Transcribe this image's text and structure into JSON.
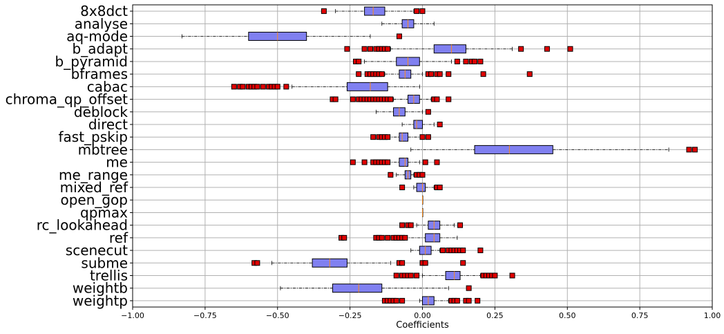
{
  "chart_data": {
    "type": "boxplot",
    "orientation": "horizontal",
    "xlabel": "Coefficients",
    "ylabel": "",
    "xlim": [
      -1.0,
      1.0
    ],
    "xticks": [
      -1.0,
      -0.75,
      -0.5,
      -0.25,
      0.0,
      0.25,
      0.5,
      0.75,
      1.0
    ],
    "xtick_labels": [
      "−1.00",
      "−0.75",
      "−0.50",
      "−0.25",
      "0.00",
      "0.25",
      "0.50",
      "0.75",
      "1.00"
    ],
    "grid": true,
    "colors": {
      "box_fill": "#8080f0",
      "median": "#ff8c1a",
      "outlier": "#e00000",
      "grid": "#b0b0b0"
    },
    "categories": [
      "8x8dct",
      "analyse",
      "aq-mode",
      "b_adapt",
      "b_pyramid",
      "bframes",
      "cabac",
      "chroma_qp_offset",
      "deblock",
      "direct",
      "fast_pskip",
      "mbtree",
      "me",
      "me_range",
      "mixed_ref",
      "open_gop",
      "qpmax",
      "rc_lookahead",
      "ref",
      "scenecut",
      "subme",
      "trellis",
      "weightb",
      "weightp"
    ],
    "boxes": [
      {
        "name": "8x8dct",
        "whislo": -0.3,
        "q1": -0.2,
        "med": -0.17,
        "q3": -0.13,
        "whishi": -0.03,
        "fliers": [
          -0.34,
          -0.02,
          0.0
        ]
      },
      {
        "name": "analyse",
        "whislo": -0.14,
        "q1": -0.07,
        "med": -0.05,
        "q3": -0.03,
        "whishi": 0.04,
        "fliers": []
      },
      {
        "name": "aq-mode",
        "whislo": -0.83,
        "q1": -0.6,
        "med": -0.5,
        "q3": -0.4,
        "whishi": -0.18,
        "fliers": [
          -0.08
        ]
      },
      {
        "name": "b_adapt",
        "whislo": -0.11,
        "q1": 0.04,
        "med": 0.1,
        "q3": 0.15,
        "whishi": 0.31,
        "fliers": [
          -0.26,
          -0.2,
          -0.18,
          -0.16,
          -0.15,
          -0.14,
          -0.13,
          -0.12,
          0.34,
          0.43,
          0.51
        ]
      },
      {
        "name": "b_pyramid",
        "whislo": -0.2,
        "q1": -0.09,
        "med": -0.05,
        "q3": -0.01,
        "whishi": 0.1,
        "fliers": [
          -0.23,
          -0.22,
          0.12,
          0.15,
          0.17,
          0.18,
          0.2
        ]
      },
      {
        "name": "bframes",
        "whislo": -0.13,
        "q1": -0.08,
        "med": -0.06,
        "q3": -0.04,
        "whishi": 0.0,
        "fliers": [
          -0.22,
          -0.19,
          -0.18,
          -0.17,
          -0.16,
          -0.15,
          -0.14,
          0.02,
          0.03,
          0.05,
          0.06,
          0.09,
          0.21,
          0.37
        ]
      },
      {
        "name": "cabac",
        "whislo": -0.45,
        "q1": -0.26,
        "med": -0.18,
        "q3": -0.12,
        "whishi": -0.01,
        "fliers": [
          -0.65,
          -0.63,
          -0.62,
          -0.6,
          -0.59,
          -0.58,
          -0.57,
          -0.55,
          -0.53,
          -0.52,
          -0.51,
          -0.5,
          -0.47
        ]
      },
      {
        "name": "chroma_qp_offset",
        "whislo": -0.1,
        "q1": -0.05,
        "med": -0.03,
        "q3": -0.01,
        "whishi": 0.03,
        "fliers": [
          -0.31,
          -0.3,
          -0.24,
          -0.22,
          -0.21,
          -0.2,
          -0.19,
          -0.18,
          -0.17,
          -0.16,
          -0.15,
          -0.14,
          -0.13,
          -0.12,
          -0.11,
          0.04,
          0.05,
          0.09
        ]
      },
      {
        "name": "deblock",
        "whislo": -0.16,
        "q1": -0.1,
        "med": -0.08,
        "q3": -0.06,
        "whishi": 0.0,
        "fliers": [
          0.02
        ]
      },
      {
        "name": "direct",
        "whislo": -0.07,
        "q1": -0.03,
        "med": -0.02,
        "q3": 0.0,
        "whishi": 0.04,
        "fliers": [
          0.06
        ]
      },
      {
        "name": "fast_pskip",
        "whislo": -0.12,
        "q1": -0.08,
        "med": -0.07,
        "q3": -0.05,
        "whishi": 0.0,
        "fliers": [
          -0.17,
          -0.15,
          -0.14,
          -0.13,
          -0.12,
          0.0,
          0.02
        ]
      },
      {
        "name": "mbtree",
        "whislo": -0.04,
        "q1": 0.18,
        "med": 0.3,
        "q3": 0.45,
        "whishi": 0.85,
        "fliers": [
          0.92,
          0.94
        ]
      },
      {
        "name": "me",
        "whislo": -0.12,
        "q1": -0.08,
        "med": -0.06,
        "q3": -0.05,
        "whishi": -0.01,
        "fliers": [
          -0.24,
          -0.2,
          -0.17,
          -0.16,
          -0.15,
          -0.14,
          -0.13,
          -0.12,
          0.01,
          0.05
        ]
      },
      {
        "name": "me_range",
        "whislo": -0.09,
        "q1": -0.06,
        "med": -0.05,
        "q3": -0.04,
        "whishi": -0.03,
        "fliers": [
          -0.11,
          -0.02,
          -0.01,
          0.0
        ]
      },
      {
        "name": "mixed_ref",
        "whislo": -0.03,
        "q1": -0.02,
        "med": 0.0,
        "q3": 0.01,
        "whishi": 0.04,
        "fliers": [
          -0.07,
          0.05,
          0.06
        ]
      },
      {
        "name": "open_gop",
        "whislo": 0.0,
        "q1": 0.0,
        "med": 0.0,
        "q3": 0.0,
        "whishi": 0.0,
        "fliers": []
      },
      {
        "name": "qpmax",
        "whislo": 0.0,
        "q1": 0.0,
        "med": 0.0,
        "q3": 0.0,
        "whishi": 0.0,
        "fliers": []
      },
      {
        "name": "rc_lookahead",
        "whislo": -0.02,
        "q1": 0.02,
        "med": 0.04,
        "q3": 0.06,
        "whishi": 0.11,
        "fliers": [
          -0.07,
          -0.05,
          -0.04,
          0.13
        ]
      },
      {
        "name": "ref",
        "whislo": -0.06,
        "q1": 0.01,
        "med": 0.04,
        "q3": 0.06,
        "whishi": 0.12,
        "fliers": [
          -0.28,
          -0.27,
          -0.16,
          -0.15,
          -0.14,
          -0.12,
          -0.1,
          -0.09,
          -0.08,
          -0.07,
          -0.06
        ]
      },
      {
        "name": "scenecut",
        "whislo": -0.04,
        "q1": -0.01,
        "med": 0.01,
        "q3": 0.03,
        "whishi": 0.06,
        "fliers": [
          0.07,
          0.09,
          0.1,
          0.11,
          0.12,
          0.13,
          0.14,
          0.2
        ]
      },
      {
        "name": "subme",
        "whislo": -0.52,
        "q1": -0.38,
        "med": -0.32,
        "q3": -0.26,
        "whishi": -0.11,
        "fliers": [
          -0.58,
          -0.57,
          -0.08,
          -0.07,
          0.0,
          0.01,
          0.14
        ]
      },
      {
        "name": "trellis",
        "whislo": 0.0,
        "q1": 0.08,
        "med": 0.11,
        "q3": 0.13,
        "whishi": 0.2,
        "fliers": [
          -0.09,
          -0.07,
          -0.06,
          -0.05,
          -0.04,
          -0.02,
          0.21,
          0.22,
          0.23,
          0.24,
          0.25,
          0.31
        ]
      },
      {
        "name": "weightb",
        "whislo": -0.49,
        "q1": -0.31,
        "med": -0.22,
        "q3": -0.14,
        "whishi": 0.09,
        "fliers": [
          0.16
        ]
      },
      {
        "name": "weightp",
        "whislo": -0.01,
        "q1": 0.0,
        "med": 0.02,
        "q3": 0.04,
        "whishi": 0.09,
        "fliers": [
          -0.13,
          -0.12,
          -0.11,
          -0.1,
          -0.09,
          -0.07,
          0.1,
          0.11,
          0.12,
          0.15,
          0.16,
          0.19
        ]
      }
    ]
  }
}
